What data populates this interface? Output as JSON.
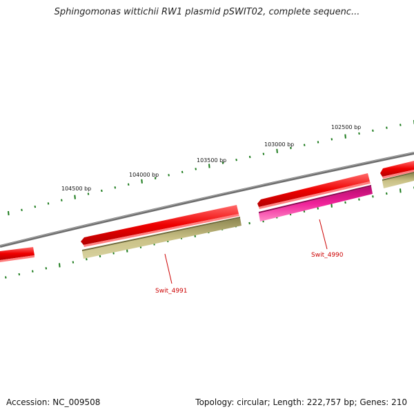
{
  "title": "Sphingomonas wittichii RW1 plasmid pSWIT02, complete sequenc...",
  "footer": {
    "accession": "Accession: NC_009508",
    "summary": "Topology: circular; Length: 222,757 bp; Genes: 210"
  },
  "ruler_labels": [
    {
      "id": "102500",
      "text": "102500 bp"
    },
    {
      "id": "103000",
      "text": "103000 bp"
    },
    {
      "id": "103500",
      "text": "103500 bp"
    },
    {
      "id": "104000",
      "text": "104000 bp"
    },
    {
      "id": "104500",
      "text": "104500 bp"
    }
  ],
  "gene_labels": [
    {
      "id": "swit_4990",
      "text": "Swit_4990"
    },
    {
      "id": "swit_4991",
      "text": "Swit_4991"
    }
  ],
  "colors": {
    "backbone": "#7a7a7a",
    "cds_forward": "#e60000",
    "gene_olive": "#b8b070",
    "gene_magenta": "#e8188c",
    "ticks": "#1a7a1a",
    "label": "#cc0000"
  }
}
